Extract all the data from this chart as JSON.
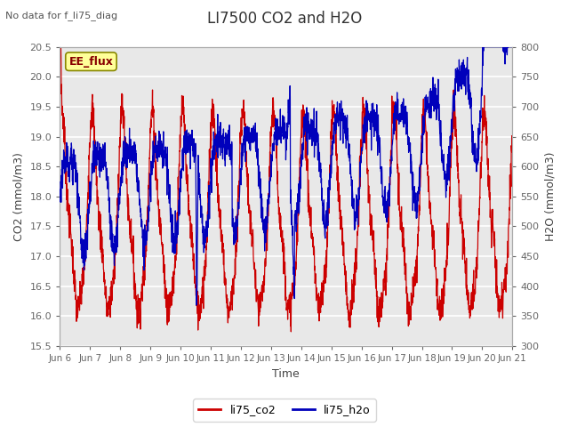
{
  "title": "LI7500 CO2 and H2O",
  "suptitle": "No data for f_li75_diag",
  "xlabel": "Time",
  "ylabel_left": "CO2 (mmol/m3)",
  "ylabel_right": "H2O (mmol/m3)",
  "ylim_left": [
    15.5,
    20.5
  ],
  "ylim_right": [
    300,
    800
  ],
  "yticks_left": [
    15.5,
    16.0,
    16.5,
    17.0,
    17.5,
    18.0,
    18.5,
    19.0,
    19.5,
    20.0,
    20.5
  ],
  "yticks_right": [
    300,
    350,
    400,
    450,
    500,
    550,
    600,
    650,
    700,
    750,
    800
  ],
  "legend_labels": [
    "li75_co2",
    "li75_h2o"
  ],
  "color_co2": "#cc0000",
  "color_h2o": "#0000bb",
  "box_label": "EE_flux",
  "box_facecolor": "#ffff99",
  "box_edgecolor": "#888800",
  "box_textcolor": "#880000",
  "fig_facecolor": "#ffffff",
  "plot_facecolor": "#e8e8e8",
  "grid_color": "#ffffff",
  "tick_color": "#666666",
  "label_color": "#444444"
}
